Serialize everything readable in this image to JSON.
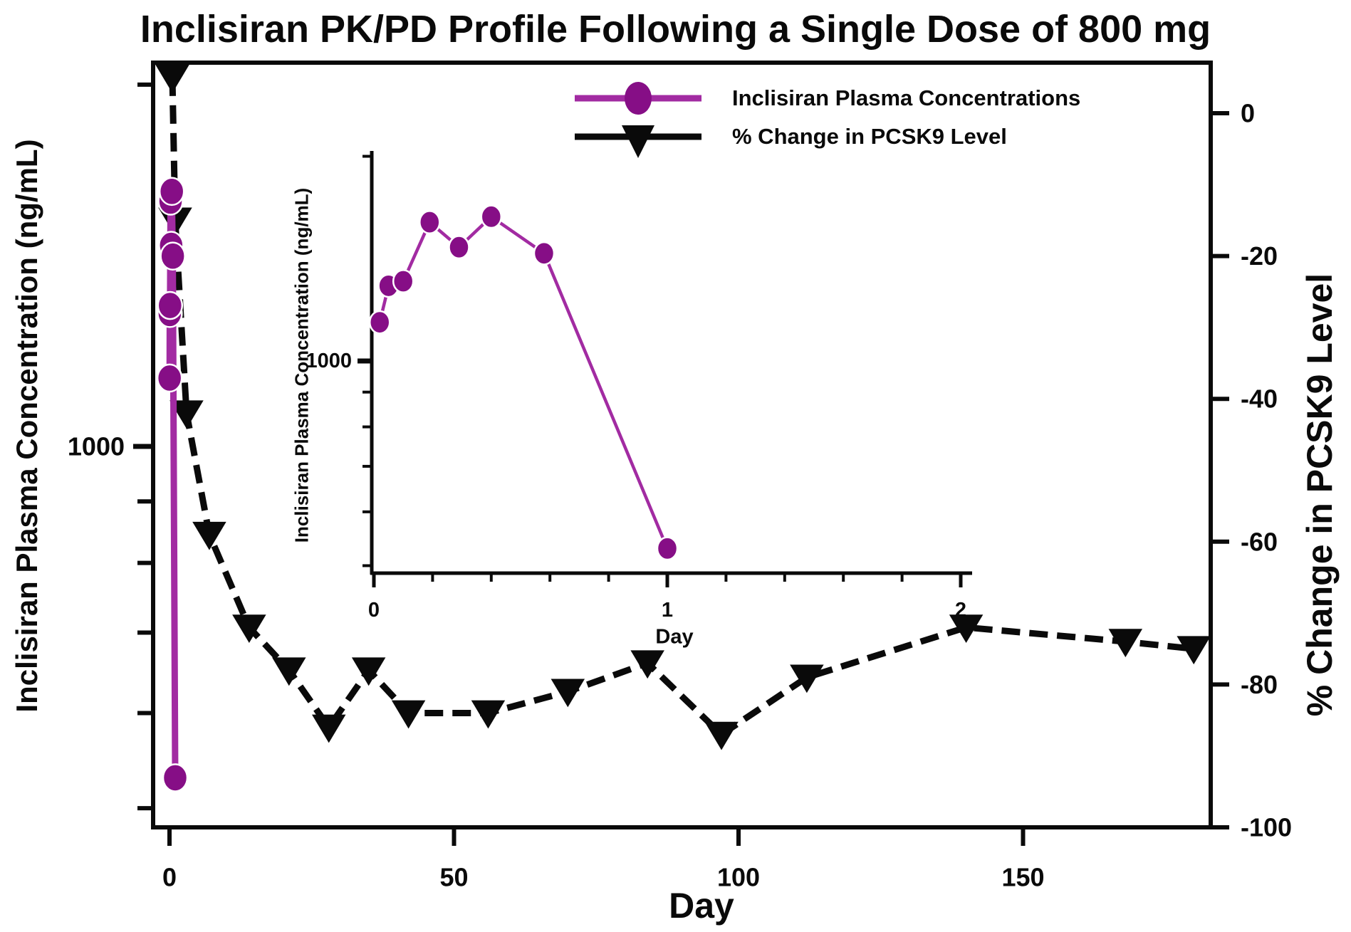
{
  "figure": {
    "title": "Inclisiran PK/PD Profile Following a Single Dose of 800 mg"
  },
  "colors": {
    "pk_marker": "#860E86",
    "pk_line": "#A22BA2",
    "pd": "#0a0a0a",
    "text": "#0a0a0a",
    "background": "#ffffff"
  },
  "legend": {
    "items": [
      {
        "label": "Inclisiran Plasma Concentrations",
        "series": "pk",
        "marker": "circle"
      },
      {
        "label": "% Change in PCSK9 Level",
        "series": "pd",
        "marker": "triangle-down"
      }
    ]
  },
  "chart_data": [
    {
      "id": "main",
      "type": "line",
      "xlabel": "Day",
      "ylabel_left": "Inclisiran Plasma Concentration (ng/mL)",
      "ylabel_right": "% Change in PCSK9 Level",
      "xlim": [
        0,
        183
      ],
      "x_ticks": [
        0,
        50,
        100,
        150
      ],
      "y_left_axis": {
        "scale": "log",
        "lim": [
          479,
          2085
        ],
        "major_ticks": [
          1000
        ],
        "major_tick_labels": [
          "1000"
        ],
        "minor_ticks": [
          500,
          600,
          700,
          800,
          900,
          2000
        ]
      },
      "y_right_axis": {
        "scale": "linear",
        "lim": [
          -100,
          7
        ],
        "ticks": [
          0,
          -20,
          -40,
          -60,
          -80,
          -100
        ],
        "tick_labels": [
          "0",
          "-20",
          "-40",
          "-60",
          "-80",
          "-100"
        ]
      },
      "grid": false,
      "legend_position": "top-center-inside",
      "series": [
        {
          "key": "pk",
          "name": "Inclisiran Plasma Concentrations",
          "axis": "left",
          "line_style": "solid",
          "marker": "circle",
          "x": [
            0.02,
            0.05,
            0.1,
            0.19,
            0.29,
            0.4,
            0.58,
            1.0
          ],
          "y": [
            1140,
            1290,
            1310,
            1600,
            1470,
            1630,
            1440,
            530
          ]
        },
        {
          "key": "pd",
          "name": "% Change in PCSK9 Level",
          "axis": "right",
          "line_style": "dashed",
          "marker": "triangle-down",
          "x": [
            0.5,
            1,
            3,
            7,
            14,
            21,
            28,
            35,
            42,
            56,
            70,
            84,
            97,
            112,
            140,
            168,
            180
          ],
          "y": [
            5,
            -15,
            -42,
            -59,
            -72,
            -78,
            -86,
            -78,
            -84,
            -84,
            -81,
            -77,
            -87,
            -79,
            -72,
            -74,
            -75
          ]
        }
      ]
    },
    {
      "id": "inset",
      "type": "line",
      "xlabel": "Day",
      "ylabel": "Inclisiran Plasma Concentration (ng/mL)",
      "xlim": [
        0,
        2.04
      ],
      "x_ticks": [
        0,
        1,
        2
      ],
      "x_tick_labels": [
        "0",
        "1",
        "2"
      ],
      "x_minor_tick_step": 0.2,
      "y_axis": {
        "scale": "log",
        "lim": [
          487,
          2020
        ],
        "major_ticks": [
          1000
        ],
        "major_tick_labels": [
          "1000"
        ],
        "minor_ticks": [
          500,
          600,
          700,
          800,
          900,
          2000
        ]
      },
      "grid": false,
      "series": [
        {
          "key": "pk",
          "name": "Inclisiran Plasma Concentrations",
          "line_style": "solid",
          "marker": "circle",
          "x": [
            0.02,
            0.05,
            0.1,
            0.19,
            0.29,
            0.4,
            0.58,
            1.0
          ],
          "y": [
            1140,
            1290,
            1310,
            1600,
            1470,
            1630,
            1440,
            530
          ]
        }
      ]
    }
  ]
}
